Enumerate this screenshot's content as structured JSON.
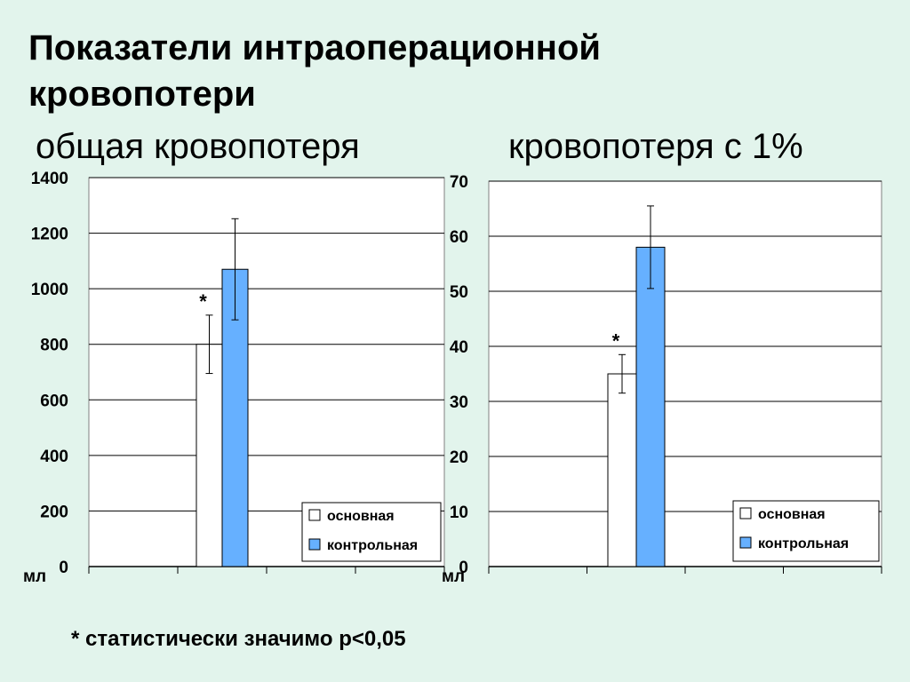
{
  "title": "Показатели интраоперационной кровопотери",
  "footnote": "* статистически значимо р<0,05",
  "chart_data": [
    {
      "type": "bar",
      "title": "общая кровопотеря",
      "ylabel": "мл",
      "ylim": [
        0,
        1400
      ],
      "yticks": [
        0,
        200,
        400,
        600,
        800,
        1000,
        1200,
        1400
      ],
      "grid": true,
      "legend_position": "bottom-right",
      "series": [
        {
          "name": "основная",
          "value": 800,
          "error_low": 695,
          "error_high": 905,
          "color": "#ffffff",
          "annotation": "*"
        },
        {
          "name": "контрольная",
          "value": 1070,
          "error_low": 888,
          "error_high": 1252,
          "color": "#66b0ff",
          "annotation": ""
        }
      ]
    },
    {
      "type": "bar",
      "title": "кровопотеря с 1%",
      "ylabel": "мл",
      "ylim": [
        0,
        70
      ],
      "yticks": [
        0,
        10,
        20,
        30,
        40,
        50,
        60,
        70
      ],
      "grid": true,
      "legend_position": "bottom-right",
      "series": [
        {
          "name": "основная",
          "value": 35,
          "error_low": 31.5,
          "error_high": 38.5,
          "color": "#ffffff",
          "annotation": "*"
        },
        {
          "name": "контрольная",
          "value": 58,
          "error_low": 50.5,
          "error_high": 65.5,
          "color": "#66b0ff",
          "annotation": ""
        }
      ]
    }
  ]
}
